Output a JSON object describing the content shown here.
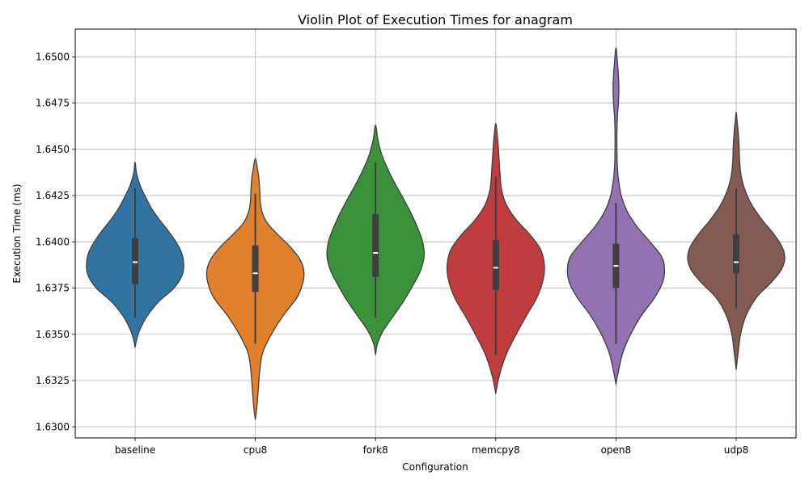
{
  "chart_data": {
    "type": "violin",
    "title": "Violin Plot of Execution Times for anagram",
    "xlabel": "Configuration",
    "ylabel": "Execution Time (ms)",
    "ylim": [
      1.6294,
      1.6515
    ],
    "grid": true,
    "yticks": [
      1.63,
      1.6325,
      1.635,
      1.6375,
      1.64,
      1.6425,
      1.645,
      1.6475,
      1.65
    ],
    "ytick_labels": [
      "1.6300",
      "1.6325",
      "1.6350",
      "1.6375",
      "1.6400",
      "1.6425",
      "1.6450",
      "1.6475",
      "1.6500"
    ],
    "categories": [
      "baseline",
      "cpu8",
      "fork8",
      "memcpy8",
      "open8",
      "udp8"
    ],
    "colors": [
      "#3274a1",
      "#e1812c",
      "#3a923a",
      "#c03d3e",
      "#9372b2",
      "#845b53"
    ],
    "violins": [
      {
        "name": "baseline",
        "min": 1.6343,
        "max": 1.6443,
        "q1": 1.6377,
        "median": 1.6389,
        "q3": 1.6402,
        "whisker_low": 1.6359,
        "whisker_high": 1.6429,
        "density": [
          [
            1.6343,
            0.0
          ],
          [
            1.6347,
            0.03
          ],
          [
            1.6352,
            0.09
          ],
          [
            1.636,
            0.25
          ],
          [
            1.6368,
            0.5
          ],
          [
            1.6375,
            0.8
          ],
          [
            1.6382,
            0.97
          ],
          [
            1.6388,
            1.0
          ],
          [
            1.6394,
            0.96
          ],
          [
            1.64,
            0.84
          ],
          [
            1.6406,
            0.68
          ],
          [
            1.6412,
            0.5
          ],
          [
            1.6418,
            0.34
          ],
          [
            1.6424,
            0.22
          ],
          [
            1.643,
            0.11
          ],
          [
            1.6437,
            0.03
          ],
          [
            1.6443,
            0.0
          ]
        ]
      },
      {
        "name": "cpu8",
        "min": 1.6304,
        "max": 1.6445,
        "q1": 1.6373,
        "median": 1.6383,
        "q3": 1.6398,
        "whisker_low": 1.6345,
        "whisker_high": 1.6426,
        "density": [
          [
            1.6304,
            0.0
          ],
          [
            1.631,
            0.03
          ],
          [
            1.632,
            0.06
          ],
          [
            1.633,
            0.09
          ],
          [
            1.634,
            0.15
          ],
          [
            1.635,
            0.33
          ],
          [
            1.636,
            0.57
          ],
          [
            1.637,
            0.86
          ],
          [
            1.6378,
            0.98
          ],
          [
            1.6384,
            1.0
          ],
          [
            1.639,
            0.93
          ],
          [
            1.6397,
            0.73
          ],
          [
            1.6404,
            0.46
          ],
          [
            1.641,
            0.25
          ],
          [
            1.6416,
            0.14
          ],
          [
            1.6422,
            0.1
          ],
          [
            1.6428,
            0.09
          ],
          [
            1.6435,
            0.07
          ],
          [
            1.644,
            0.04
          ],
          [
            1.6445,
            0.0
          ]
        ]
      },
      {
        "name": "fork8",
        "min": 1.6339,
        "max": 1.6463,
        "q1": 1.6381,
        "median": 1.6394,
        "q3": 1.6415,
        "whisker_low": 1.6359,
        "whisker_high": 1.6443,
        "density": [
          [
            1.6339,
            0.0
          ],
          [
            1.6345,
            0.04
          ],
          [
            1.6352,
            0.16
          ],
          [
            1.636,
            0.37
          ],
          [
            1.6368,
            0.58
          ],
          [
            1.6376,
            0.76
          ],
          [
            1.6384,
            0.92
          ],
          [
            1.6392,
            1.0
          ],
          [
            1.64,
            0.97
          ],
          [
            1.6408,
            0.86
          ],
          [
            1.6416,
            0.72
          ],
          [
            1.6424,
            0.56
          ],
          [
            1.6432,
            0.39
          ],
          [
            1.644,
            0.24
          ],
          [
            1.6447,
            0.13
          ],
          [
            1.6455,
            0.05
          ],
          [
            1.6463,
            0.0
          ]
        ]
      },
      {
        "name": "memcpy8",
        "min": 1.6318,
        "max": 1.6464,
        "q1": 1.6374,
        "median": 1.6386,
        "q3": 1.6401,
        "whisker_low": 1.6339,
        "whisker_high": 1.6435,
        "density": [
          [
            1.6318,
            0.0
          ],
          [
            1.6325,
            0.05
          ],
          [
            1.6332,
            0.12
          ],
          [
            1.634,
            0.23
          ],
          [
            1.635,
            0.42
          ],
          [
            1.636,
            0.63
          ],
          [
            1.637,
            0.85
          ],
          [
            1.638,
            0.98
          ],
          [
            1.6388,
            1.0
          ],
          [
            1.6396,
            0.92
          ],
          [
            1.6404,
            0.7
          ],
          [
            1.6412,
            0.42
          ],
          [
            1.642,
            0.22
          ],
          [
            1.6428,
            0.12
          ],
          [
            1.6436,
            0.09
          ],
          [
            1.6444,
            0.07
          ],
          [
            1.6452,
            0.05
          ],
          [
            1.6458,
            0.03
          ],
          [
            1.6464,
            0.0
          ]
        ]
      },
      {
        "name": "open8",
        "min": 1.6323,
        "max": 1.6505,
        "q1": 1.6375,
        "median": 1.6387,
        "q3": 1.6399,
        "whisker_low": 1.6345,
        "whisker_high": 1.6421,
        "density": [
          [
            1.6323,
            0.0
          ],
          [
            1.633,
            0.05
          ],
          [
            1.634,
            0.14
          ],
          [
            1.635,
            0.3
          ],
          [
            1.636,
            0.52
          ],
          [
            1.637,
            0.8
          ],
          [
            1.6378,
            0.96
          ],
          [
            1.6385,
            1.0
          ],
          [
            1.6392,
            0.94
          ],
          [
            1.64,
            0.7
          ],
          [
            1.6408,
            0.44
          ],
          [
            1.6416,
            0.24
          ],
          [
            1.6424,
            0.12
          ],
          [
            1.6432,
            0.06
          ],
          [
            1.644,
            0.03
          ],
          [
            1.645,
            0.02
          ],
          [
            1.646,
            0.02
          ],
          [
            1.6468,
            0.03
          ],
          [
            1.6475,
            0.05
          ],
          [
            1.6483,
            0.06
          ],
          [
            1.649,
            0.05
          ],
          [
            1.6497,
            0.03
          ],
          [
            1.6505,
            0.0
          ]
        ]
      },
      {
        "name": "udp8",
        "min": 1.6331,
        "max": 1.647,
        "q1": 1.6383,
        "median": 1.6389,
        "q3": 1.6404,
        "whisker_low": 1.6364,
        "whisker_high": 1.6429,
        "density": [
          [
            1.6331,
            0.0
          ],
          [
            1.634,
            0.04
          ],
          [
            1.635,
            0.09
          ],
          [
            1.636,
            0.2
          ],
          [
            1.637,
            0.42
          ],
          [
            1.6378,
            0.72
          ],
          [
            1.6385,
            0.93
          ],
          [
            1.6391,
            1.0
          ],
          [
            1.6397,
            0.95
          ],
          [
            1.6404,
            0.78
          ],
          [
            1.6412,
            0.53
          ],
          [
            1.642,
            0.32
          ],
          [
            1.6428,
            0.18
          ],
          [
            1.6436,
            0.1
          ],
          [
            1.6444,
            0.07
          ],
          [
            1.6452,
            0.06
          ],
          [
            1.646,
            0.04
          ],
          [
            1.6465,
            0.02
          ],
          [
            1.647,
            0.0
          ]
        ]
      }
    ]
  }
}
